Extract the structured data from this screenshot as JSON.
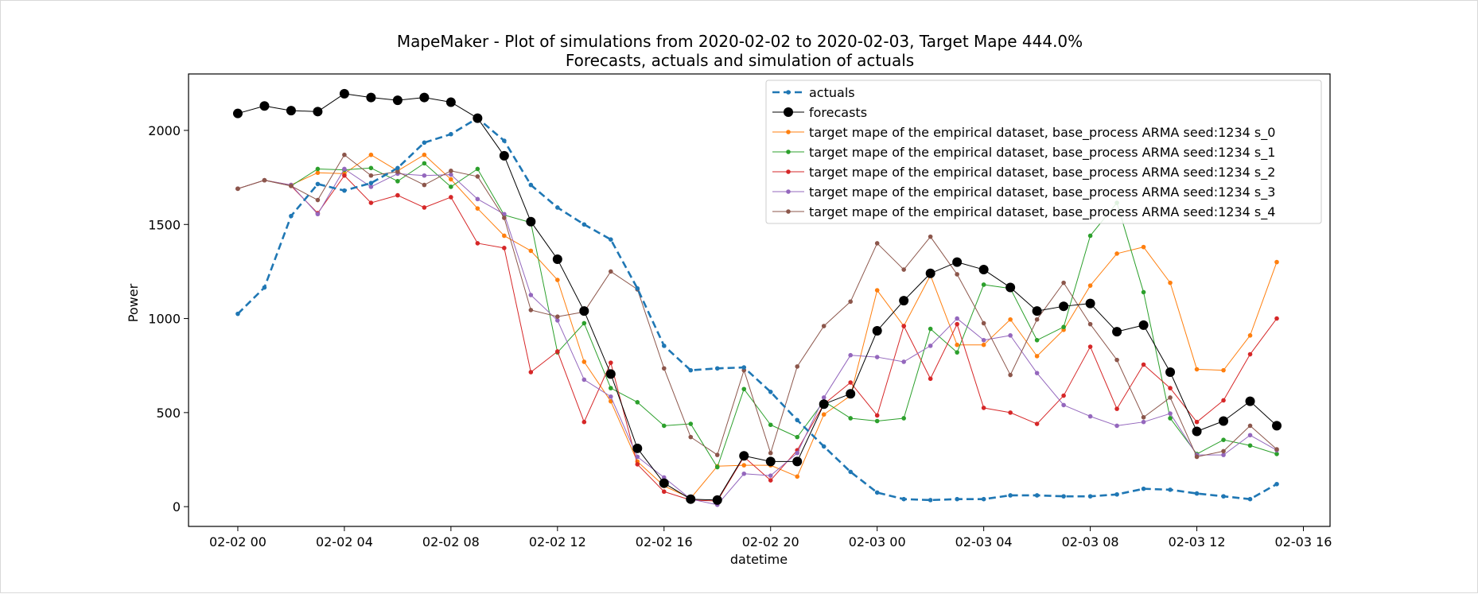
{
  "chart_data": {
    "type": "line",
    "title": "MapeMaker - Plot of simulations from 2020-02-02 to 2020-02-03, Target Mape 444.0%",
    "subtitle": "Forecasts, actuals and simulation of actuals",
    "xlabel": "datetime",
    "ylabel": "Power",
    "x_ticks": [
      "02-02 00",
      "02-02 04",
      "02-02 08",
      "02-02 12",
      "02-02 16",
      "02-02 20",
      "02-03 00",
      "02-03 04",
      "02-03 08",
      "02-03 12",
      "02-03 16"
    ],
    "y_ticks": [
      0,
      500,
      1000,
      1500,
      2000
    ],
    "x_range_hours": [
      -1.85,
      41.0
    ],
    "y_range": [
      -105,
      2300
    ],
    "grid": false,
    "legend_position": "top-right",
    "x_hours": [
      0,
      1,
      2,
      3,
      4,
      5,
      6,
      7,
      8,
      9,
      10,
      11,
      12,
      13,
      14,
      15,
      16,
      17,
      18,
      19,
      20,
      21,
      22,
      23,
      24,
      25,
      26,
      27,
      28,
      29,
      30,
      31,
      32,
      33,
      34,
      35,
      36,
      37,
      38,
      39
    ],
    "series": [
      {
        "name": "actuals",
        "color": "#1f77b4",
        "style": "dashed",
        "values": [
          1025,
          1165,
          1545,
          1715,
          1680,
          1720,
          1800,
          1935,
          1980,
          2065,
          1945,
          1710,
          1590,
          1500,
          1420,
          1160,
          855,
          725,
          735,
          740,
          610,
          460,
          320,
          185,
          75,
          40,
          35,
          40,
          40,
          60,
          60,
          55,
          55,
          65,
          95,
          90,
          70,
          55,
          40,
          120
        ]
      },
      {
        "name": "forecasts",
        "color": "#000000",
        "style": "solid-big",
        "values": [
          2090,
          2130,
          2105,
          2100,
          2195,
          2175,
          2160,
          2175,
          2150,
          2065,
          1865,
          1515,
          1315,
          1040,
          705,
          310,
          125,
          40,
          35,
          270,
          240,
          240,
          545,
          600,
          935,
          1095,
          1240,
          1300,
          1260,
          1165,
          1040,
          1065,
          1080,
          930,
          965,
          715,
          400,
          455,
          560,
          430
        ]
      },
      {
        "name": "target mape  of the empirical dataset, base_process ARMA  seed:1234 s_0",
        "color": "#ff7f0e",
        "style": "solid",
        "values": [
          1690,
          1735,
          1710,
          1775,
          1770,
          1870,
          1785,
          1870,
          1740,
          1585,
          1440,
          1360,
          1205,
          770,
          560,
          240,
          110,
          45,
          215,
          220,
          220,
          160,
          490,
          590,
          1150,
          960,
          1230,
          860,
          860,
          995,
          800,
          940,
          1175,
          1345,
          1380,
          1190,
          730,
          725,
          910,
          1300
        ]
      },
      {
        "name": "target mape  of the empirical dataset, base_process ARMA  seed:1234 s_1",
        "color": "#2ca02c",
        "style": "solid",
        "values": [
          1690,
          1735,
          1705,
          1795,
          1790,
          1800,
          1730,
          1825,
          1700,
          1795,
          1550,
          1510,
          820,
          975,
          630,
          555,
          430,
          440,
          210,
          625,
          435,
          370,
          560,
          470,
          455,
          470,
          945,
          820,
          1180,
          1160,
          885,
          955,
          1440,
          1615,
          1140,
          470,
          280,
          355,
          325,
          280
        ]
      },
      {
        "name": "target mape  of the empirical dataset, base_process ARMA  seed:1234 s_2",
        "color": "#d62728",
        "style": "solid",
        "values": [
          1690,
          1735,
          1705,
          1560,
          1760,
          1615,
          1655,
          1590,
          1645,
          1400,
          1375,
          715,
          825,
          450,
          765,
          225,
          80,
          35,
          30,
          265,
          140,
          300,
          545,
          660,
          485,
          960,
          680,
          970,
          525,
          500,
          440,
          590,
          850,
          520,
          755,
          630,
          450,
          565,
          810,
          1000
        ]
      },
      {
        "name": "target mape  of the empirical dataset, base_process ARMA  seed:1234 s_3",
        "color": "#9467bd",
        "style": "solid",
        "values": [
          1690,
          1735,
          1710,
          1555,
          1795,
          1700,
          1770,
          1760,
          1765,
          1635,
          1555,
          1125,
          990,
          675,
          585,
          265,
          155,
          40,
          10,
          175,
          165,
          285,
          580,
          805,
          795,
          770,
          855,
          1000,
          885,
          910,
          710,
          540,
          480,
          430,
          450,
          495,
          275,
          275,
          380,
          300
        ]
      },
      {
        "name": "target mape  of the empirical dataset, base_process ARMA  seed:1234 s_4",
        "color": "#8c564b",
        "style": "solid",
        "values": [
          1690,
          1735,
          1705,
          1630,
          1870,
          1760,
          1780,
          1710,
          1785,
          1755,
          1535,
          1045,
          1010,
          1035,
          1250,
          1155,
          735,
          370,
          275,
          725,
          285,
          745,
          960,
          1090,
          1400,
          1260,
          1435,
          1235,
          975,
          700,
          995,
          1190,
          970,
          780,
          475,
          580,
          265,
          295,
          430,
          305
        ]
      }
    ]
  }
}
